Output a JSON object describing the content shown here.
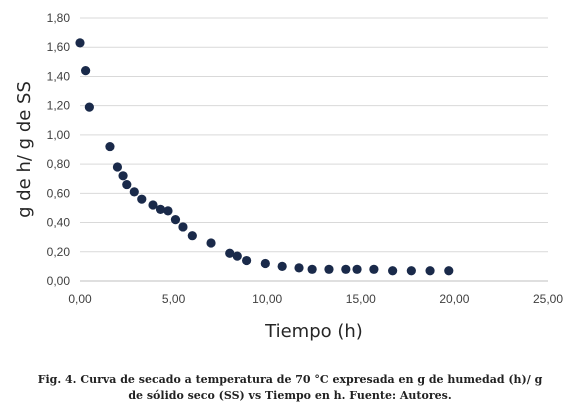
{
  "chart_data": {
    "type": "scatter",
    "xlabel": "Tiempo (h)",
    "ylabel": "g de h/ g de SS",
    "xlim": [
      0,
      25
    ],
    "ylim": [
      0,
      1.8
    ],
    "x_ticks": [
      "0,00",
      "5,00",
      "10,00",
      "15,00",
      "20,00",
      "25,00"
    ],
    "y_ticks": [
      "0,00",
      "0,20",
      "0,40",
      "0,60",
      "0,80",
      "1,00",
      "1,20",
      "1,40",
      "1,60",
      "1,80"
    ],
    "grid": "horizontal",
    "marker_color": "#1a2a4a",
    "points": [
      [
        0.0,
        1.63
      ],
      [
        0.3,
        1.44
      ],
      [
        0.5,
        1.19
      ],
      [
        1.6,
        0.92
      ],
      [
        2.0,
        0.78
      ],
      [
        2.3,
        0.72
      ],
      [
        2.5,
        0.66
      ],
      [
        2.9,
        0.61
      ],
      [
        3.3,
        0.56
      ],
      [
        3.9,
        0.52
      ],
      [
        4.3,
        0.49
      ],
      [
        4.7,
        0.48
      ],
      [
        5.1,
        0.42
      ],
      [
        5.5,
        0.37
      ],
      [
        6.0,
        0.31
      ],
      [
        7.0,
        0.26
      ],
      [
        8.0,
        0.19
      ],
      [
        8.4,
        0.17
      ],
      [
        8.9,
        0.14
      ],
      [
        9.9,
        0.12
      ],
      [
        10.8,
        0.1
      ],
      [
        11.7,
        0.09
      ],
      [
        12.4,
        0.08
      ],
      [
        13.3,
        0.08
      ],
      [
        14.2,
        0.08
      ],
      [
        14.8,
        0.08
      ],
      [
        15.7,
        0.08
      ],
      [
        16.7,
        0.07
      ],
      [
        17.7,
        0.07
      ],
      [
        18.7,
        0.07
      ],
      [
        19.7,
        0.07
      ]
    ]
  },
  "caption": {
    "line1": "Fig. 4. Curva de secado a temperatura de 70 °C expresada en g de humedad (h)/ g",
    "line2": "de sólido seco (SS) vs Tiempo en h. Fuente: Autores."
  }
}
